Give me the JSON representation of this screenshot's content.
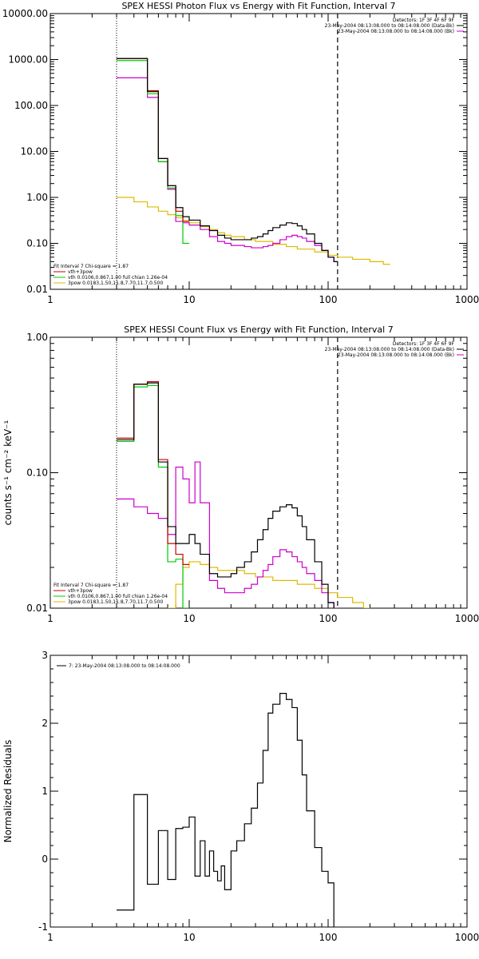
{
  "chart_data": [
    {
      "type": "line",
      "title": "SPEX HESSI Photon Flux vs Energy with Fit Function, Interval 7",
      "xscale": "log",
      "yscale": "log",
      "xlim": [
        1,
        1000
      ],
      "ylim": [
        0.01,
        10000
      ],
      "xticks": [
        "1",
        "10",
        "100",
        "1000"
      ],
      "yticks": [
        "0.01",
        "0.10",
        "1.00",
        "10.00",
        "100.00",
        "1000.00",
        "10000.00"
      ],
      "legend_top_right": [
        {
          "text": "Detectors: 1F 3F 4F 6F 9F",
          "color": "#000000"
        },
        {
          "text": "23-May-2004 08:13:08.000 to 08:14:08.000 (Data-Bk)",
          "color": "#000000"
        },
        {
          "text": "23-May-2004 08:13:08.000 to 08:14:08.000 (Bk)",
          "color": "#cc00cc"
        }
      ],
      "legend_bottom_left": [
        {
          "text": "Fit Interval 7   Chi-square = 1.87",
          "color": "#000000"
        },
        {
          "text": "vth+3pow",
          "color": "#cc0000"
        },
        {
          "text": "vth 0.0106,0.867,1.00  full chian 1.26e-04",
          "color": "#00cc00"
        },
        {
          "text": "3pow 0.0183,1.50,11.8,7.70,11.7,0.500",
          "color": "#ddbb00"
        }
      ],
      "vlines": [
        3,
        117
      ],
      "series": [
        {
          "color": "#000000",
          "x": [
            3,
            4,
            5,
            6,
            7,
            8,
            9,
            10,
            12,
            14,
            16,
            18,
            20,
            22,
            25,
            28,
            31,
            34,
            37,
            40,
            45,
            50,
            55,
            60,
            65,
            70,
            80,
            90,
            100,
            110,
            117
          ],
          "y": [
            1050,
            1050,
            200,
            7,
            1.8,
            0.6,
            0.38,
            0.32,
            0.24,
            0.19,
            0.15,
            0.13,
            0.12,
            0.12,
            0.12,
            0.13,
            0.14,
            0.16,
            0.19,
            0.22,
            0.25,
            0.28,
            0.27,
            0.24,
            0.2,
            0.16,
            0.1,
            0.07,
            0.05,
            0.04,
            0.04
          ]
        },
        {
          "color": "#cc0000",
          "x": [
            3,
            4,
            5,
            6,
            7,
            8,
            9,
            10
          ],
          "y": [
            1050,
            1050,
            210,
            7,
            1.8,
            0.5,
            0.3,
            0.25
          ]
        },
        {
          "color": "#00cc00",
          "x": [
            3,
            4,
            5,
            6,
            7,
            8,
            9,
            10
          ],
          "y": [
            950,
            950,
            180,
            6,
            1.6,
            0.4,
            0.1,
            0.01
          ]
        },
        {
          "color": "#cc00cc",
          "x": [
            3,
            4,
            5,
            6,
            7,
            8,
            9,
            10,
            12,
            14,
            16,
            18,
            20,
            22,
            25,
            28,
            31,
            34,
            37,
            40,
            45,
            50,
            55,
            60,
            65,
            70,
            80,
            90,
            100,
            110,
            117
          ],
          "y": [
            400,
            400,
            150,
            6,
            1.5,
            0.3,
            0.28,
            0.25,
            0.2,
            0.14,
            0.11,
            0.1,
            0.09,
            0.09,
            0.085,
            0.08,
            0.08,
            0.085,
            0.09,
            0.1,
            0.12,
            0.14,
            0.15,
            0.14,
            0.13,
            0.11,
            0.09,
            0.07,
            0.05,
            0.04,
            0.01
          ]
        },
        {
          "color": "#ddbb00",
          "x": [
            3,
            4,
            5,
            6,
            7,
            8,
            9,
            10,
            12,
            14,
            16,
            18,
            20,
            25,
            30,
            40,
            50,
            60,
            80,
            100,
            117,
            150,
            200,
            250,
            280
          ],
          "y": [
            1,
            0.8,
            0.62,
            0.5,
            0.42,
            0.36,
            0.31,
            0.28,
            0.23,
            0.2,
            0.17,
            0.15,
            0.14,
            0.12,
            0.11,
            0.095,
            0.085,
            0.075,
            0.065,
            0.055,
            0.05,
            0.045,
            0.04,
            0.035,
            0.01
          ]
        }
      ]
    },
    {
      "type": "line",
      "title": "SPEX HESSI Count Flux vs Energy with Fit Function, Interval 7",
      "ylabel": "counts s⁻¹ cm⁻² keV⁻¹",
      "xscale": "log",
      "yscale": "log",
      "xlim": [
        1,
        1000
      ],
      "ylim": [
        0.01,
        1
      ],
      "xticks": [
        "1",
        "10",
        "100",
        "1000"
      ],
      "yticks": [
        "0.01",
        "0.10",
        "1.00"
      ],
      "legend_top_right": [
        {
          "text": "Detectors: 1F 3F 4F 6F 9F",
          "color": "#000000"
        },
        {
          "text": "23-May-2004 08:13:08.000 to 08:14:08.000 (Data-Bk)",
          "color": "#000000"
        },
        {
          "text": "23-May-2004 08:13:08.000 to 08:14:08.000 (Bk)",
          "color": "#cc00cc"
        }
      ],
      "legend_bottom_left": [
        {
          "text": "Fit Interval 7   Chi-square = 1.87",
          "color": "#000000"
        },
        {
          "text": "vth+3pow",
          "color": "#cc0000"
        },
        {
          "text": "vth 0.0106,0.867,1.00  full chian 1.26e-04",
          "color": "#00cc00"
        },
        {
          "text": "3pow 0.0183,1.50,11.8,7.70,11.7,0.500",
          "color": "#ddbb00"
        }
      ],
      "vlines": [
        3,
        117
      ],
      "series": [
        {
          "color": "#000000",
          "x": [
            3,
            4,
            5,
            6,
            7,
            8,
            9,
            10,
            11,
            12,
            14,
            16,
            18,
            20,
            22,
            25,
            28,
            31,
            34,
            37,
            40,
            45,
            50,
            55,
            60,
            65,
            70,
            80,
            90,
            100,
            110,
            117
          ],
          "y": [
            0.175,
            0.45,
            0.46,
            0.12,
            0.04,
            0.03,
            0.03,
            0.035,
            0.03,
            0.025,
            0.018,
            0.017,
            0.017,
            0.018,
            0.02,
            0.022,
            0.026,
            0.032,
            0.038,
            0.046,
            0.052,
            0.056,
            0.058,
            0.055,
            0.048,
            0.04,
            0.032,
            0.022,
            0.015,
            0.011,
            0.009,
            0.01
          ]
        },
        {
          "color": "#cc0000",
          "x": [
            3,
            4,
            5,
            6,
            7,
            8,
            9,
            10
          ],
          "y": [
            0.18,
            0.45,
            0.47,
            0.125,
            0.03,
            0.025,
            0.021,
            0.02
          ]
        },
        {
          "color": "#00cc00",
          "x": [
            3,
            4,
            5,
            6,
            7,
            8,
            9,
            10
          ],
          "y": [
            0.17,
            0.43,
            0.44,
            0.11,
            0.022,
            0.023,
            0.01,
            0.01
          ]
        },
        {
          "color": "#cc00cc",
          "x": [
            3,
            4,
            5,
            6,
            7,
            8,
            9,
            10,
            11,
            12,
            14,
            16,
            18,
            20,
            22,
            25,
            28,
            31,
            34,
            37,
            40,
            45,
            50,
            55,
            60,
            65,
            70,
            80,
            90,
            100,
            110,
            117
          ],
          "y": [
            0.064,
            0.056,
            0.05,
            0.046,
            0.035,
            0.11,
            0.09,
            0.06,
            0.12,
            0.06,
            0.016,
            0.014,
            0.013,
            0.013,
            0.013,
            0.014,
            0.015,
            0.017,
            0.019,
            0.021,
            0.024,
            0.027,
            0.026,
            0.024,
            0.022,
            0.02,
            0.018,
            0.016,
            0.013,
            0.011,
            0.01,
            0.01
          ]
        },
        {
          "color": "#ddbb00",
          "x": [
            7,
            8,
            9,
            10,
            12,
            14,
            16,
            20,
            25,
            30,
            40,
            50,
            60,
            80,
            100,
            117,
            150,
            180,
            200
          ],
          "y": [
            0.01,
            0.015,
            0.02,
            0.022,
            0.021,
            0.02,
            0.019,
            0.019,
            0.018,
            0.017,
            0.016,
            0.016,
            0.015,
            0.014,
            0.013,
            0.012,
            0.011,
            0.01,
            0.01
          ]
        }
      ]
    },
    {
      "type": "line",
      "ylabel": "Normalized Residuals",
      "xscale": "log",
      "yscale": "linear",
      "xlim": [
        1,
        1000
      ],
      "ylim": [
        -1,
        3
      ],
      "xticks": [
        "1",
        "10",
        "100",
        "1000"
      ],
      "yticks": [
        "-1",
        "0",
        "1",
        "2",
        "3"
      ],
      "legend_top_left": [
        {
          "text": "7: 23-May-2004 08:13:08.000 to 08:14:08.000",
          "color": "#000000"
        }
      ],
      "series": [
        {
          "color": "#000000",
          "x": [
            3,
            4,
            5,
            6,
            7,
            8,
            9,
            10,
            11,
            12,
            13,
            14,
            15,
            16,
            17,
            18,
            20,
            22,
            25,
            28,
            31,
            34,
            37,
            40,
            45,
            50,
            55,
            60,
            65,
            70,
            80,
            90,
            100,
            110,
            117
          ],
          "y": [
            -0.75,
            0.95,
            -0.37,
            0.42,
            -0.3,
            0.45,
            0.47,
            0.62,
            -0.25,
            0.27,
            -0.25,
            0.12,
            -0.18,
            -0.32,
            -0.1,
            -0.45,
            0.12,
            0.27,
            0.52,
            0.75,
            1.12,
            1.6,
            2.15,
            2.28,
            2.44,
            2.35,
            2.23,
            1.75,
            1.24,
            0.71,
            0.17,
            -0.18,
            -0.35,
            -1.05,
            -1.05
          ]
        }
      ]
    }
  ]
}
